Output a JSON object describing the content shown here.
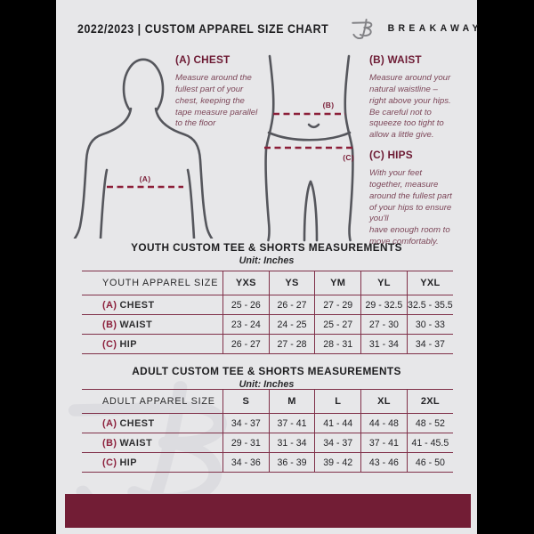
{
  "page": {
    "header": {
      "title": "2022/2023  |  CUSTOM APPAREL SIZE CHART",
      "brand": "BREAKAWAY",
      "logo_icon": "breakaway-b-logo"
    },
    "colors": {
      "canvas_bg": "#000000",
      "page_bg": "#e7e7e9",
      "maroon": "#721d35",
      "line_maroon": "#803049",
      "text_dark": "#1d1d1f",
      "figure_stroke": "#55565c"
    },
    "diagram_labels": {
      "chest": "(A)",
      "waist": "(B)",
      "hips": "(C)"
    },
    "measure_guides": [
      {
        "heading": "(A) CHEST",
        "description": "Measure around the\nfullest part of your\nchest, keeping the\ntape measure parallel\nto the floor"
      },
      {
        "heading": "(B) WAIST",
        "description": "Measure around your\nnatural waistline –\nright above your hips.\nBe careful not to\nsqueeze too tight to\nallow a little give."
      },
      {
        "heading": "(C) HIPS",
        "description": "With your feet\ntogether, measure\naround the fullest part\nof your hips to ensure\nyou'll\nhave enough room to\nmove comfortably."
      }
    ],
    "tables": [
      {
        "title": "YOUTH CUSTOM TEE & SHORTS MEASUREMENTS",
        "unit": "Unit: Inches",
        "header": [
          "YOUTH APPAREL SIZE",
          "YXS",
          "YS",
          "YM",
          "YL",
          "YXL"
        ],
        "rows": [
          {
            "prefix": "(A)",
            "label": "CHEST",
            "values": [
              "25 - 26",
              "26 - 27",
              "27 - 29",
              "29 - 32.5",
              "32.5 - 35.5"
            ]
          },
          {
            "prefix": "(B)",
            "label": "WAIST",
            "values": [
              "23 - 24",
              "24 - 25",
              "25 - 27",
              "27 - 30",
              "30 - 33"
            ]
          },
          {
            "prefix": "(C)",
            "label": "HIP",
            "values": [
              "26 - 27",
              "27 - 28",
              "28 - 31",
              "31 - 34",
              "34 - 37"
            ]
          }
        ]
      },
      {
        "title": "ADULT CUSTOM TEE & SHORTS MEASUREMENTS",
        "unit": "Unit: Inches",
        "header": [
          "ADULT APPAREL SIZE",
          "S",
          "M",
          "L",
          "XL",
          "2XL"
        ],
        "rows": [
          {
            "prefix": "(A)",
            "label": "CHEST",
            "values": [
              "34 - 37",
              "37 - 41",
              "41 - 44",
              "44 - 48",
              "48 - 52"
            ]
          },
          {
            "prefix": "(B)",
            "label": "WAIST",
            "values": [
              "29 - 31",
              "31 - 34",
              "34 - 37",
              "37 - 41",
              "41 - 45.5"
            ]
          },
          {
            "prefix": "(C)",
            "label": "HIP",
            "values": [
              "34 - 36",
              "36 - 39",
              "39 - 42",
              "43 - 46",
              "46 - 50"
            ]
          }
        ]
      }
    ]
  }
}
